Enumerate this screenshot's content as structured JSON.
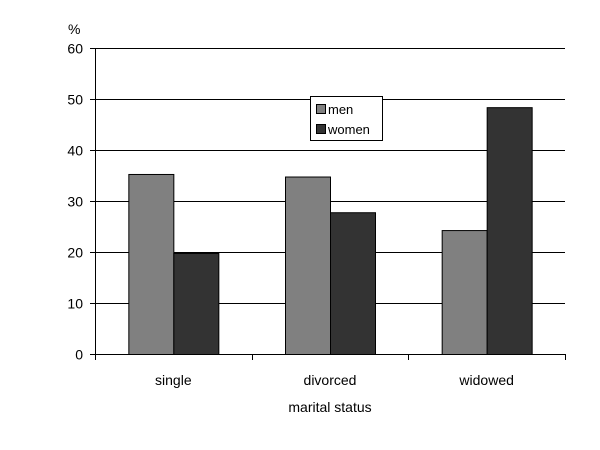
{
  "chart_data": {
    "type": "bar",
    "categories": [
      "single",
      "divorced",
      "widowed"
    ],
    "series": [
      {
        "name": "men",
        "values": [
          35.3,
          34.8,
          24.3
        ],
        "color": "#808080"
      },
      {
        "name": "women",
        "values": [
          19.8,
          27.8,
          48.4
        ],
        "color": "#333333"
      }
    ],
    "xlabel": "marital status",
    "ylabel": "%",
    "ylim": [
      0,
      60
    ],
    "yticks": [
      "0",
      "10",
      "20",
      "30",
      "40",
      "50",
      "60"
    ],
    "grid": true,
    "legend_position": "top-center"
  }
}
